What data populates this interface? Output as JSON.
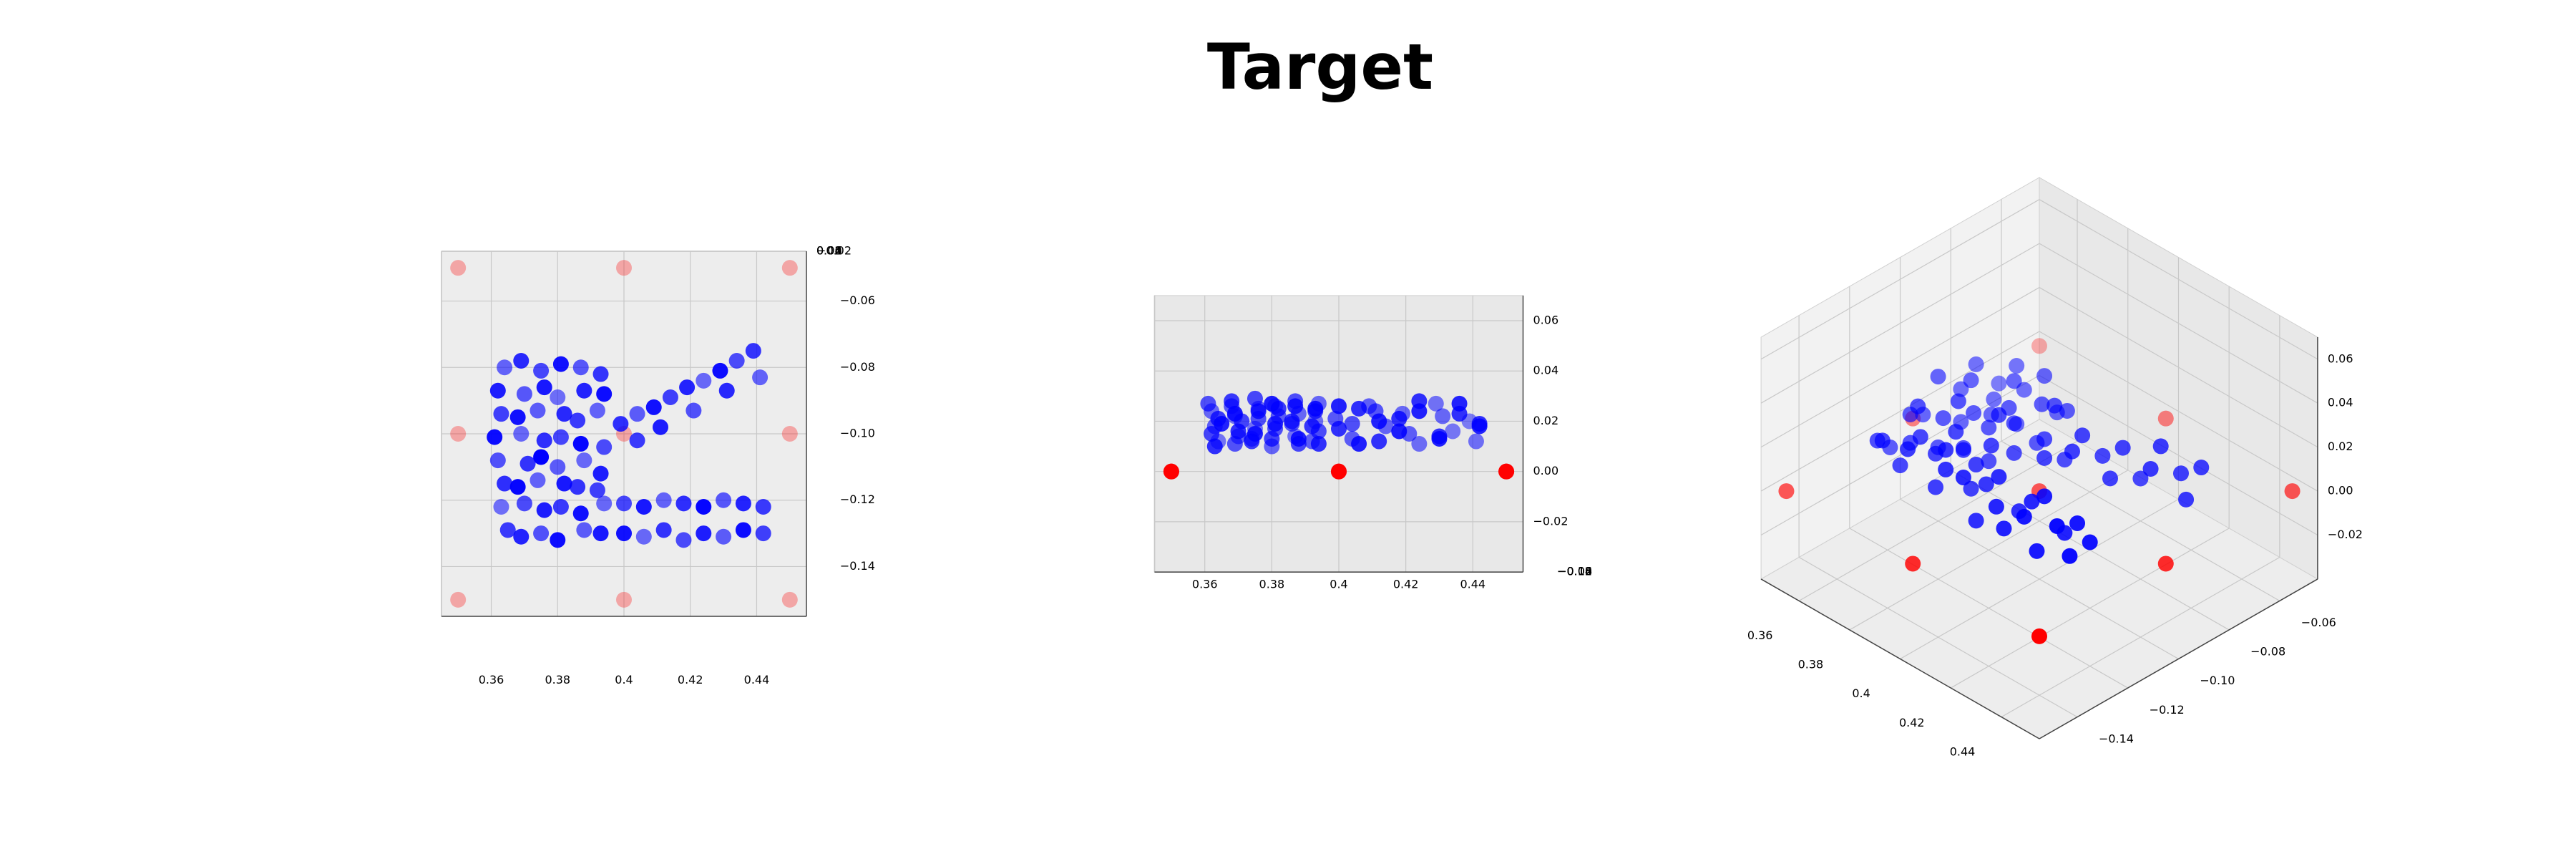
{
  "title": "Target",
  "chart_data": {
    "type": "scatter3d",
    "views": [
      {
        "elev": 90,
        "azim": -90
      },
      {
        "elev": 0,
        "azim": -90
      },
      {
        "elev": 35,
        "azim": -45
      }
    ],
    "xlim": [
      0.345,
      0.455
    ],
    "ylim": [
      -0.155,
      -0.045
    ],
    "zlim": [
      -0.04,
      0.07
    ],
    "xticks": [
      0.36,
      0.38,
      0.4,
      0.42,
      0.44
    ],
    "yticks": [
      {
        "value": -0.06,
        "label": "−0.06"
      },
      {
        "value": -0.08,
        "label": "−0.08"
      },
      {
        "value": -0.1,
        "label": "−0.10"
      },
      {
        "value": -0.12,
        "label": "−0.12"
      },
      {
        "value": -0.14,
        "label": "−0.14"
      }
    ],
    "zticks": [
      {
        "value": -0.02,
        "label": "−0.02"
      },
      {
        "value": 0,
        "label": "0.00"
      },
      {
        "value": 0.02,
        "label": "0.02"
      },
      {
        "value": 0.04,
        "label": "0.04"
      },
      {
        "value": 0.06,
        "label": "0.06"
      }
    ],
    "grid": true,
    "series": [
      {
        "color": "#0000ff",
        "x": [
          0.364,
          0.362,
          0.363,
          0.361,
          0.362,
          0.364,
          0.363,
          0.365,
          0.369,
          0.37,
          0.368,
          0.369,
          0.371,
          0.368,
          0.37,
          0.369,
          0.375,
          0.376,
          0.374,
          0.376,
          0.375,
          0.374,
          0.376,
          0.375,
          0.381,
          0.38,
          0.382,
          0.381,
          0.38,
          0.382,
          0.381,
          0.38,
          0.387,
          0.388,
          0.386,
          0.387,
          0.388,
          0.386,
          0.387,
          0.388,
          0.393,
          0.394,
          0.392,
          0.394,
          0.393,
          0.392,
          0.394,
          0.393,
          0.399,
          0.404,
          0.409,
          0.414,
          0.419,
          0.424,
          0.429,
          0.434,
          0.439,
          0.411,
          0.421,
          0.431,
          0.441,
          0.404,
          0.4,
          0.406,
          0.412,
          0.418,
          0.424,
          0.43,
          0.436,
          0.442,
          0.4,
          0.406,
          0.412,
          0.418,
          0.424,
          0.43,
          0.436,
          0.442
        ],
        "y": [
          -0.08,
          -0.087,
          -0.094,
          -0.101,
          -0.108,
          -0.115,
          -0.122,
          -0.129,
          -0.078,
          -0.088,
          -0.095,
          -0.1,
          -0.109,
          -0.116,
          -0.121,
          -0.131,
          -0.081,
          -0.086,
          -0.093,
          -0.102,
          -0.107,
          -0.114,
          -0.123,
          -0.13,
          -0.079,
          -0.089,
          -0.094,
          -0.101,
          -0.11,
          -0.115,
          -0.122,
          -0.132,
          -0.08,
          -0.087,
          -0.096,
          -0.103,
          -0.108,
          -0.116,
          -0.124,
          -0.129,
          -0.082,
          -0.088,
          -0.093,
          -0.104,
          -0.112,
          -0.117,
          -0.121,
          -0.13,
          -0.097,
          -0.094,
          -0.092,
          -0.089,
          -0.086,
          -0.084,
          -0.081,
          -0.078,
          -0.075,
          -0.098,
          -0.093,
          -0.087,
          -0.083,
          -0.102,
          -0.121,
          -0.122,
          -0.12,
          -0.121,
          -0.122,
          -0.12,
          -0.121,
          -0.122,
          -0.13,
          -0.131,
          -0.129,
          -0.132,
          -0.13,
          -0.131,
          -0.129,
          -0.13
        ],
        "z": [
          0.012,
          0.024,
          0.018,
          0.027,
          0.015,
          0.021,
          0.01,
          0.019,
          0.022,
          0.014,
          0.026,
          0.011,
          0.02,
          0.028,
          0.016,
          0.023,
          0.017,
          0.025,
          0.013,
          0.021,
          0.029,
          0.012,
          0.024,
          0.015,
          0.026,
          0.01,
          0.022,
          0.017,
          0.013,
          0.025,
          0.019,
          0.027,
          0.014,
          0.023,
          0.019,
          0.028,
          0.011,
          0.02,
          0.026,
          0.013,
          0.02,
          0.027,
          0.012,
          0.016,
          0.024,
          0.018,
          0.011,
          0.025,
          0.021,
          0.013,
          0.026,
          0.018,
          0.023,
          0.011,
          0.027,
          0.016,
          0.02,
          0.024,
          0.015,
          0.022,
          0.012,
          0.019,
          0.017,
          0.025,
          0.012,
          0.021,
          0.028,
          0.014,
          0.023,
          0.019,
          0.026,
          0.011,
          0.02,
          0.016,
          0.024,
          0.013,
          0.027,
          0.018
        ]
      },
      {
        "color": "#ff0000",
        "x": [
          0.35,
          0.4,
          0.45,
          0.35,
          0.4,
          0.45,
          0.35,
          0.4,
          0.45
        ],
        "y": [
          -0.05,
          -0.05,
          -0.05,
          -0.1,
          -0.1,
          -0.1,
          -0.15,
          -0.15,
          -0.15
        ],
        "z": [
          0,
          0,
          0,
          0,
          0,
          0,
          0,
          0,
          0
        ]
      }
    ]
  }
}
